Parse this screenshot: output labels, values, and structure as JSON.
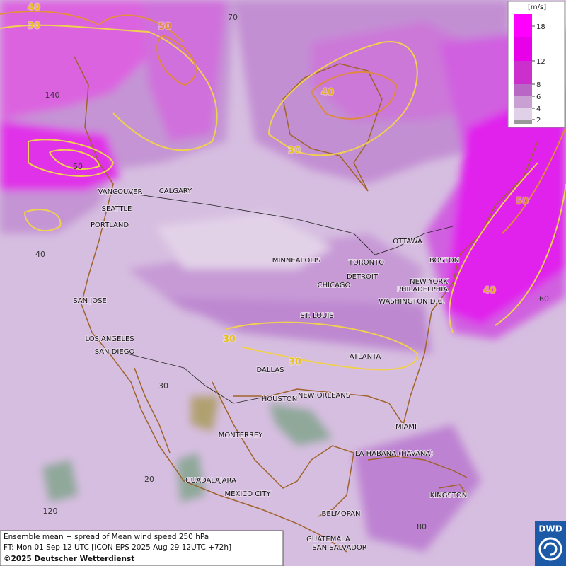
{
  "map": {
    "cities": [
      "VANCOUVER",
      "CALGARY",
      "SEATTLE",
      "PORTLAND",
      "SAN JOSE",
      "LOS ANGELES",
      "SAN DIEGO",
      "MINNEAPOLIS",
      "TORONTO",
      "OTTAWA",
      "BOSTON",
      "DETROIT",
      "CHICAGO",
      "NEW YORK",
      "PHILADELPHIA",
      "WASHINGTON D.C.",
      "ST. LOUIS",
      "ATLANTA",
      "DALLAS",
      "HOUSTON",
      "NEW ORLEANS",
      "MIAMI",
      "MONTERREY",
      "LA HABANA (HAVANA)",
      "GUADALAJARA",
      "MEXICO CITY",
      "KINGSTON",
      "BELMOPAN",
      "GUATEMALA",
      "SAN SALVADOR"
    ],
    "contour_labels": [
      "40",
      "30",
      "50",
      "40",
      "30",
      "50",
      "40",
      "30",
      "30"
    ],
    "graticule_labels": [
      "70",
      "140",
      "50",
      "40",
      "30",
      "20",
      "120",
      "80",
      "60"
    ]
  },
  "legend": {
    "unit": "[m/s]",
    "ticks": [
      "18",
      "12",
      "8",
      "6",
      "4",
      "2"
    ]
  },
  "footer": {
    "line1": "Ensemble mean + spread of Mean wind speed 250 hPa",
    "line2": "FT: Mon 01 Sep 12 UTC [ICON EPS 2025 Aug 29 12UTC +72h]",
    "copyright": "©2025 Deutscher Wetterdienst"
  },
  "logo": "DWD"
}
